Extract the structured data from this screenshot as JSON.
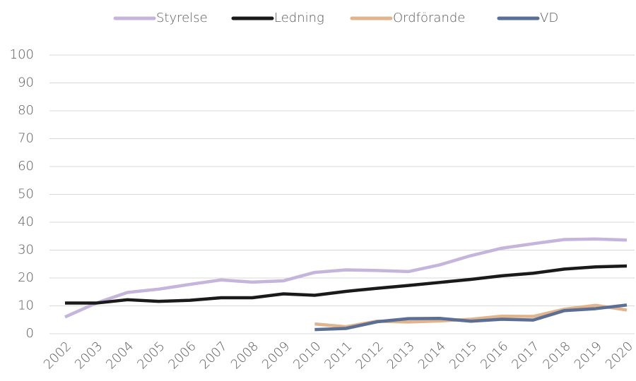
{
  "chart_data": {
    "type": "line",
    "categories": [
      "2002",
      "2003",
      "2004",
      "2005",
      "2006",
      "2007",
      "2008",
      "2009",
      "2010",
      "2011",
      "2012",
      "2013",
      "2014",
      "2015",
      "2016",
      "2017",
      "2018",
      "2019",
      "2020"
    ],
    "series": [
      {
        "name": "Styrelse",
        "color": "#c5b4dc",
        "values": [
          6,
          11,
          14.8,
          16,
          17.7,
          19.3,
          18.5,
          19,
          22,
          22.9,
          22.7,
          22.3,
          24.7,
          28,
          30.7,
          32.3,
          33.8,
          34,
          33.6
        ]
      },
      {
        "name": "Ledning",
        "color": "#1a1a1a",
        "values": [
          11,
          11,
          12.2,
          11.6,
          12,
          12.9,
          12.9,
          14.3,
          13.8,
          15.2,
          16.3,
          17.3,
          18.4,
          19.5,
          20.8,
          21.7,
          23.2,
          24,
          24.3
        ]
      },
      {
        "name": "Ordförande",
        "color": "#e0b48c",
        "values": [
          null,
          null,
          null,
          null,
          null,
          null,
          null,
          null,
          3.5,
          2.5,
          4.5,
          4.2,
          4.6,
          5.2,
          6.3,
          6.2,
          8.8,
          10.2,
          8.5
        ]
      },
      {
        "name": "VD",
        "color": "#5a6e96",
        "values": [
          null,
          null,
          null,
          null,
          null,
          null,
          null,
          null,
          1.5,
          1.9,
          4.3,
          5.4,
          5.5,
          4.5,
          5.2,
          4.9,
          8.3,
          9,
          10.3
        ]
      }
    ],
    "ylim": [
      0,
      100
    ],
    "yticks": [
      0,
      10,
      20,
      30,
      40,
      50,
      60,
      70,
      80,
      90,
      100
    ],
    "grid": true,
    "legend": "top"
  }
}
